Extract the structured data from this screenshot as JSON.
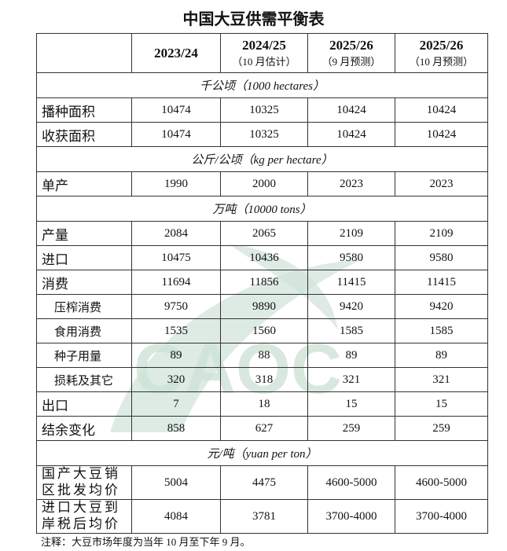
{
  "title": "中国大豆供需平衡表",
  "header": {
    "c1": "2023/24",
    "c2": "2024/25",
    "c2s": "（10 月估计）",
    "c3": "2025/26",
    "c3s": "（9 月预测）",
    "c4": "2025/26",
    "c4s": "（10 月预测）"
  },
  "units": {
    "area": "千公顷（1000 hectares）",
    "yield": "公斤/公顷（kg per hectare）",
    "tons": "万吨（10000 tons）",
    "price": "元/吨（yuan per ton）"
  },
  "area_rows": [
    {
      "label": "播种面积",
      "v": [
        "10474",
        "10325",
        "10424",
        "10424"
      ]
    },
    {
      "label": "收获面积",
      "v": [
        "10474",
        "10325",
        "10424",
        "10424"
      ]
    }
  ],
  "yield_rows": [
    {
      "label": "单产",
      "v": [
        "1990",
        "2000",
        "2023",
        "2023"
      ]
    }
  ],
  "ton_rows": [
    {
      "label": "产量",
      "v": [
        "2084",
        "2065",
        "2109",
        "2109"
      ]
    },
    {
      "label": "进口",
      "v": [
        "10475",
        "10436",
        "9580",
        "9580"
      ]
    },
    {
      "label": "消费",
      "v": [
        "11694",
        "11856",
        "11415",
        "11415"
      ]
    },
    {
      "label": "压榨消费",
      "v": [
        "9750",
        "9890",
        "9420",
        "9420"
      ],
      "sub": true
    },
    {
      "label": "食用消费",
      "v": [
        "1535",
        "1560",
        "1585",
        "1585"
      ],
      "sub": true
    },
    {
      "label": "种子用量",
      "v": [
        "89",
        "88",
        "89",
        "89"
      ],
      "sub": true
    },
    {
      "label": "损耗及其它",
      "v": [
        "320",
        "318",
        "321",
        "321"
      ],
      "sub": true
    },
    {
      "label": "出口",
      "v": [
        "7",
        "18",
        "15",
        "15"
      ]
    },
    {
      "label": "结余变化",
      "v": [
        "858",
        "627",
        "259",
        "259"
      ]
    }
  ],
  "price_rows": [
    {
      "label1": "国产大豆销",
      "label2": "区批发均价",
      "v": [
        "5004",
        "4475",
        "4600-5000",
        "4600-5000"
      ]
    },
    {
      "label1": "进口大豆到",
      "label2": "岸税后均价",
      "v": [
        "4084",
        "3781",
        "3700-4000",
        "3700-4000"
      ]
    }
  ],
  "watermark": "CAOC",
  "watermark_color": "#cfe3d8",
  "note": "注释：大豆市场年度为当年 10 月至下年 9 月。"
}
